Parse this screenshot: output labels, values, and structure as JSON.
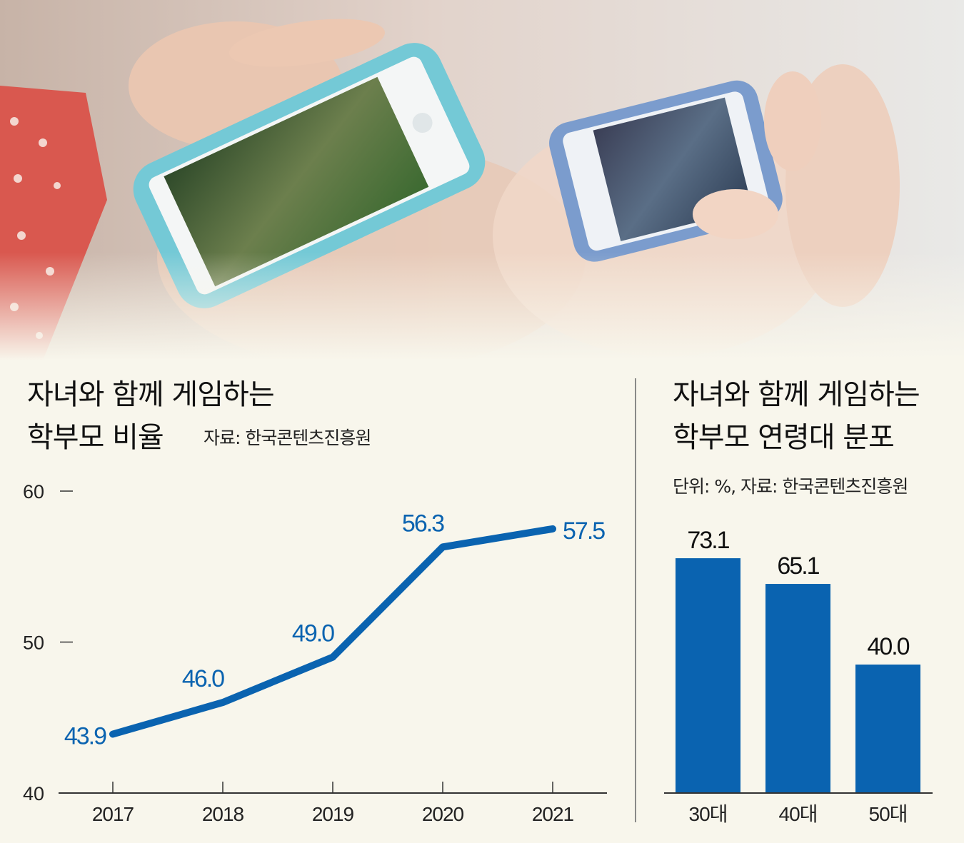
{
  "colors": {
    "accent": "#0a63b0",
    "background": "#f8f6ec"
  },
  "photo": {
    "subject": "two hands holding smartphones playing a mobile game"
  },
  "chart_data": [
    {
      "type": "line",
      "title_line1": "자녀와 함께 게임하는",
      "title_line2": "학부모 비율",
      "source": "자료: 한국콘텐츠진흥원",
      "categories": [
        "2017",
        "2018",
        "2019",
        "2020",
        "2021"
      ],
      "values": [
        43.9,
        46.0,
        49.0,
        56.3,
        57.5
      ],
      "value_labels": [
        "43.9",
        "46.0",
        "49.0",
        "56.3",
        "57.5"
      ],
      "ylim": [
        40,
        60
      ],
      "yticks": [
        "40",
        "50",
        "60"
      ],
      "color": "#0a63b0",
      "grid": false
    },
    {
      "type": "bar",
      "title_line1": "자녀와 함께 게임하는",
      "title_line2": "학부모 연령대 분포",
      "source": "단위: %, 자료: 한국콘텐츠진흥원",
      "categories": [
        "30대",
        "40대",
        "50대"
      ],
      "values": [
        73.1,
        65.1,
        40.0
      ],
      "value_labels": [
        "73.1",
        "65.1",
        "40.0"
      ],
      "ylim": [
        0,
        80
      ],
      "color": "#0a63b0",
      "grid": false
    }
  ]
}
